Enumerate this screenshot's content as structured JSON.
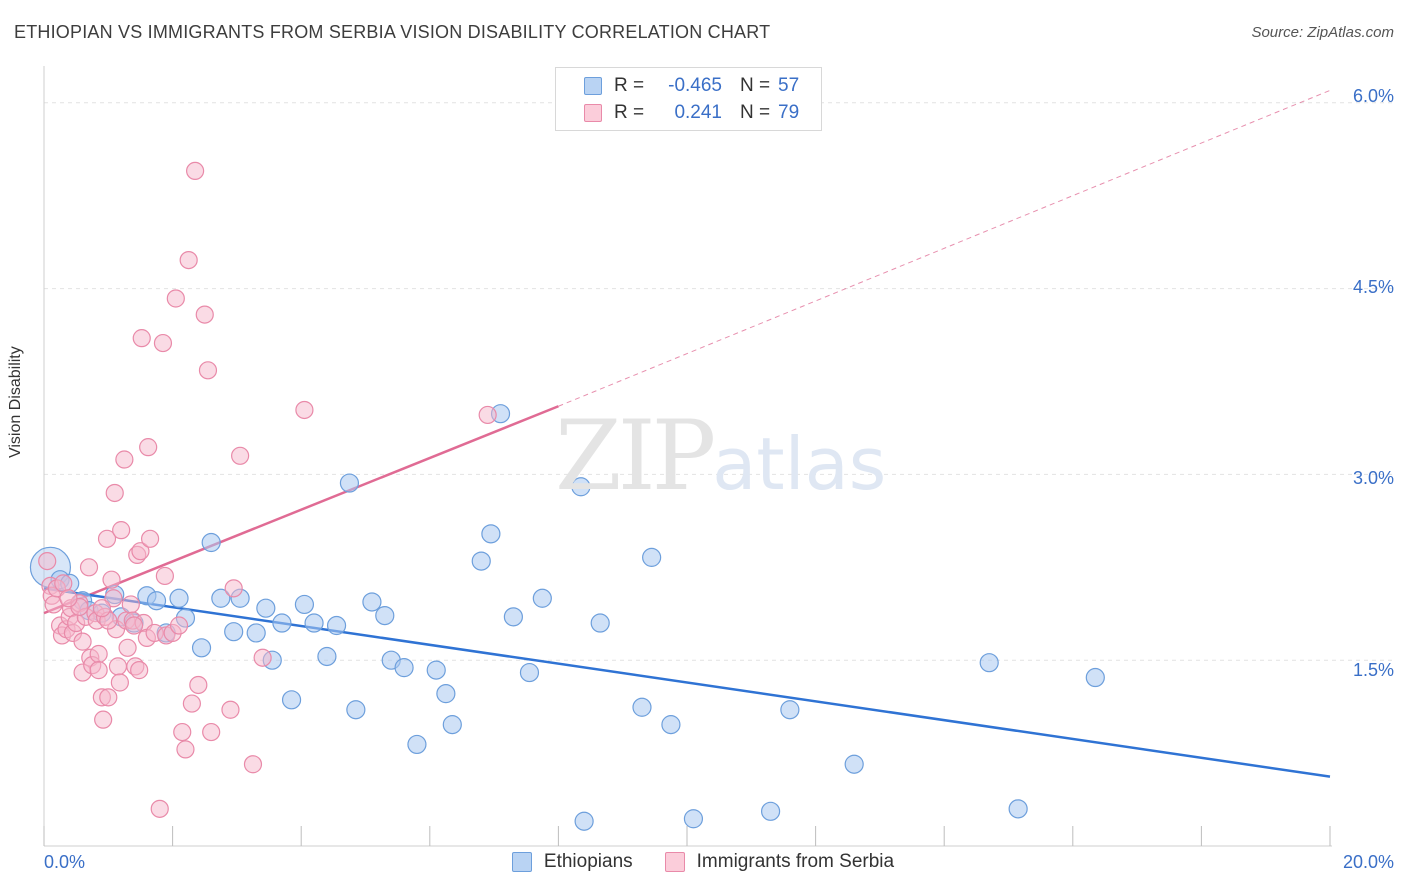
{
  "header": {
    "title": "ETHIOPIAN VS IMMIGRANTS FROM SERBIA VISION DISABILITY CORRELATION CHART",
    "source": "Source: ZipAtlas.com"
  },
  "watermark": {
    "zip": "ZIP",
    "atlas": "atlas"
  },
  "legend": {
    "r_label": "R =",
    "n_label": "N =",
    "ethiopians": {
      "r": "-0.465",
      "n": "57"
    },
    "serbia": {
      "r": "0.241",
      "n": "79"
    }
  },
  "colors": {
    "ethiopians_fill": "#a9c8f0",
    "ethiopians_stroke": "#6d9fdc",
    "ethiopians_line": "#2f73d4",
    "serbia_fill": "#f6b8cb",
    "serbia_stroke": "#e98aa9",
    "serbia_line": "#e06b94",
    "tick_label": "#3a6fc7",
    "grid": "#e2e2e2"
  },
  "chart_data": {
    "type": "scatter",
    "title": "ETHIOPIAN VS IMMIGRANTS FROM SERBIA VISION DISABILITY CORRELATION CHART",
    "xlabel": "",
    "ylabel": "Vision Disability",
    "xlim": [
      0,
      20
    ],
    "ylim": [
      0,
      6.2
    ],
    "x_tick_labels": [
      "0.0%",
      "20.0%"
    ],
    "y_ticks": [
      1.5,
      3.0,
      4.5,
      6.0
    ],
    "y_tick_labels": [
      "1.5%",
      "3.0%",
      "4.5%",
      "6.0%"
    ],
    "grid": true,
    "legend_position": "top-center",
    "series": [
      {
        "name": "Ethiopians",
        "trend": {
          "x": [
            0,
            20
          ],
          "y": [
            2.08,
            0.56
          ],
          "style": "solid"
        },
        "points": [
          [
            0.1,
            2.25
          ],
          [
            0.25,
            2.15
          ],
          [
            0.4,
            2.12
          ],
          [
            0.6,
            1.98
          ],
          [
            0.7,
            1.9
          ],
          [
            0.9,
            1.88
          ],
          [
            1.1,
            2.03
          ],
          [
            1.2,
            1.85
          ],
          [
            1.4,
            1.8
          ],
          [
            1.6,
            2.02
          ],
          [
            1.75,
            1.98
          ],
          [
            1.9,
            1.72
          ],
          [
            2.1,
            2.0
          ],
          [
            2.2,
            1.84
          ],
          [
            2.45,
            1.6
          ],
          [
            2.6,
            2.45
          ],
          [
            2.75,
            2.0
          ],
          [
            2.95,
            1.73
          ],
          [
            3.05,
            2.0
          ],
          [
            3.3,
            1.72
          ],
          [
            3.45,
            1.92
          ],
          [
            3.55,
            1.5
          ],
          [
            3.7,
            1.8
          ],
          [
            3.85,
            1.18
          ],
          [
            4.05,
            1.95
          ],
          [
            4.2,
            1.8
          ],
          [
            4.4,
            1.53
          ],
          [
            4.55,
            1.78
          ],
          [
            4.75,
            2.93
          ],
          [
            4.85,
            1.1
          ],
          [
            5.1,
            1.97
          ],
          [
            5.3,
            1.86
          ],
          [
            5.4,
            1.5
          ],
          [
            5.6,
            1.44
          ],
          [
            5.8,
            0.82
          ],
          [
            6.1,
            1.42
          ],
          [
            6.25,
            1.23
          ],
          [
            6.35,
            0.98
          ],
          [
            6.8,
            2.3
          ],
          [
            6.95,
            2.52
          ],
          [
            7.1,
            3.49
          ],
          [
            7.3,
            1.85
          ],
          [
            7.55,
            1.4
          ],
          [
            7.75,
            2.0
          ],
          [
            8.35,
            2.9
          ],
          [
            8.4,
            0.2
          ],
          [
            8.65,
            1.8
          ],
          [
            9.3,
            1.12
          ],
          [
            9.45,
            2.33
          ],
          [
            9.75,
            0.98
          ],
          [
            10.1,
            0.22
          ],
          [
            11.3,
            0.28
          ],
          [
            11.6,
            1.1
          ],
          [
            12.6,
            0.66
          ],
          [
            14.7,
            1.48
          ],
          [
            15.15,
            0.3
          ],
          [
            16.35,
            1.36
          ]
        ]
      },
      {
        "name": "Immigrants from Serbia",
        "trend": {
          "x": [
            0,
            8.0
          ],
          "y": [
            1.88,
            3.55
          ],
          "style": "solid",
          "extended_to": [
            20,
            6.1
          ],
          "extended_style": "dashed"
        },
        "points": [
          [
            0.05,
            2.3
          ],
          [
            0.1,
            2.1
          ],
          [
            0.12,
            2.02
          ],
          [
            0.15,
            1.95
          ],
          [
            0.2,
            2.08
          ],
          [
            0.25,
            1.78
          ],
          [
            0.28,
            1.7
          ],
          [
            0.3,
            2.12
          ],
          [
            0.35,
            1.75
          ],
          [
            0.4,
            1.85
          ],
          [
            0.42,
            1.92
          ],
          [
            0.45,
            1.72
          ],
          [
            0.5,
            1.8
          ],
          [
            0.55,
            1.96
          ],
          [
            0.6,
            1.65
          ],
          [
            0.6,
            1.4
          ],
          [
            0.65,
            1.85
          ],
          [
            0.7,
            2.25
          ],
          [
            0.72,
            1.52
          ],
          [
            0.75,
            1.46
          ],
          [
            0.8,
            1.88
          ],
          [
            0.82,
            1.82
          ],
          [
            0.85,
            1.55
          ],
          [
            0.9,
            1.2
          ],
          [
            0.92,
            1.02
          ],
          [
            0.95,
            1.85
          ],
          [
            0.98,
            2.48
          ],
          [
            1.0,
            1.2
          ],
          [
            1.05,
            2.15
          ],
          [
            1.08,
            2.0
          ],
          [
            1.1,
            2.85
          ],
          [
            1.12,
            1.75
          ],
          [
            1.15,
            1.45
          ],
          [
            1.18,
            1.32
          ],
          [
            1.2,
            2.55
          ],
          [
            1.25,
            3.12
          ],
          [
            1.28,
            1.82
          ],
          [
            1.3,
            1.6
          ],
          [
            1.35,
            1.95
          ],
          [
            1.38,
            1.82
          ],
          [
            1.42,
            1.45
          ],
          [
            1.45,
            2.35
          ],
          [
            1.48,
            1.42
          ],
          [
            1.5,
            2.38
          ],
          [
            1.52,
            4.1
          ],
          [
            1.55,
            1.8
          ],
          [
            1.6,
            1.68
          ],
          [
            1.62,
            3.22
          ],
          [
            1.65,
            2.48
          ],
          [
            1.72,
            1.72
          ],
          [
            1.8,
            0.3
          ],
          [
            1.85,
            4.06
          ],
          [
            1.88,
            2.18
          ],
          [
            1.9,
            1.7
          ],
          [
            2.0,
            1.72
          ],
          [
            2.05,
            4.42
          ],
          [
            2.1,
            1.78
          ],
          [
            2.15,
            0.92
          ],
          [
            2.2,
            0.78
          ],
          [
            2.25,
            4.73
          ],
          [
            2.3,
            1.15
          ],
          [
            2.35,
            5.45
          ],
          [
            2.4,
            1.3
          ],
          [
            2.5,
            4.29
          ],
          [
            2.55,
            3.84
          ],
          [
            2.6,
            0.92
          ],
          [
            2.9,
            1.1
          ],
          [
            2.95,
            2.08
          ],
          [
            3.05,
            3.15
          ],
          [
            3.25,
            0.66
          ],
          [
            3.4,
            1.52
          ],
          [
            4.05,
            3.52
          ],
          [
            6.9,
            3.48
          ],
          [
            0.55,
            1.93
          ],
          [
            0.85,
            1.42
          ],
          [
            1.0,
            1.82
          ],
          [
            0.38,
            2.0
          ],
          [
            1.4,
            1.78
          ],
          [
            0.9,
            1.92
          ]
        ]
      }
    ]
  },
  "bottom_legend": {
    "ethiopians": "Ethiopians",
    "serbia": "Immigrants from Serbia"
  }
}
